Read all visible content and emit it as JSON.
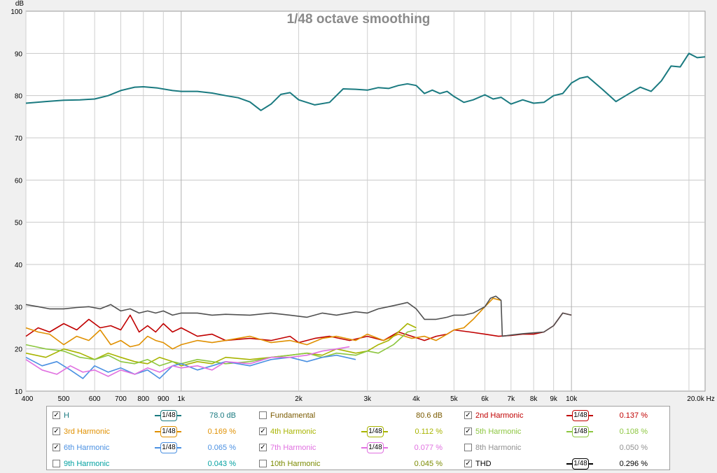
{
  "chart_data": {
    "type": "line",
    "title": "1/48 octave smoothing",
    "ylabel": "dB",
    "xlabel": "",
    "x_scale": "log",
    "xlim": [
      400,
      22000
    ],
    "ylim": [
      10,
      100
    ],
    "yticks": [
      10,
      20,
      30,
      40,
      50,
      60,
      70,
      80,
      90,
      100
    ],
    "xticks": [
      {
        "v": 400,
        "label": "400"
      },
      {
        "v": 500,
        "label": "500"
      },
      {
        "v": 600,
        "label": "600"
      },
      {
        "v": 700,
        "label": "700"
      },
      {
        "v": 800,
        "label": "800"
      },
      {
        "v": 900,
        "label": "900"
      },
      {
        "v": 1000,
        "label": "1k"
      },
      {
        "v": 2000,
        "label": "2k"
      },
      {
        "v": 3000,
        "label": "3k"
      },
      {
        "v": 4000,
        "label": "4k"
      },
      {
        "v": 5000,
        "label": "5k"
      },
      {
        "v": 6000,
        "label": "6k"
      },
      {
        "v": 7000,
        "label": "7k"
      },
      {
        "v": 8000,
        "label": "8k"
      },
      {
        "v": 9000,
        "label": "9k"
      },
      {
        "v": 10000,
        "label": "10k"
      },
      {
        "v": 20000,
        "label": "20.0k Hz"
      }
    ],
    "grid": true,
    "series": [
      {
        "name": "H",
        "color": "#1a7a80",
        "x": [
          400,
          450,
          500,
          550,
          600,
          650,
          700,
          760,
          800,
          870,
          950,
          1000,
          1100,
          1200,
          1300,
          1400,
          1500,
          1600,
          1700,
          1800,
          1900,
          2000,
          2200,
          2400,
          2600,
          2800,
          3000,
          3200,
          3400,
          3600,
          3800,
          4000,
          4200,
          4400,
          4600,
          4800,
          5000,
          5300,
          5600,
          6000,
          6300,
          6600,
          7000,
          7500,
          8000,
          8500,
          9000,
          9500,
          10000,
          10500,
          11000,
          12000,
          13000,
          14000,
          15000,
          16000,
          17000,
          18000,
          19000,
          20000,
          21000,
          22000
        ],
        "y": [
          78.2,
          78.6,
          78.9,
          79.0,
          79.2,
          80.0,
          81.2,
          82.0,
          82.1,
          81.8,
          81.2,
          81.0,
          81.0,
          80.6,
          80.0,
          79.5,
          78.5,
          76.5,
          78.0,
          80.3,
          80.7,
          79.0,
          77.8,
          78.4,
          81.6,
          81.5,
          81.3,
          81.9,
          81.7,
          82.4,
          82.8,
          82.4,
          80.5,
          81.3,
          80.5,
          81.0,
          79.8,
          78.4,
          79.0,
          80.2,
          79.2,
          79.6,
          78.0,
          79.0,
          78.2,
          78.4,
          80.0,
          80.5,
          83.0,
          84.1,
          84.5,
          81.5,
          78.6,
          80.4,
          82.0,
          81.0,
          83.5,
          87.0,
          86.8,
          90.0,
          89.0,
          89.2
        ]
      },
      {
        "name": "2nd Harmonic",
        "color": "#c00000",
        "x": [
          400,
          430,
          460,
          500,
          540,
          580,
          620,
          660,
          700,
          740,
          780,
          820,
          860,
          900,
          950,
          1000,
          1100,
          1200,
          1300,
          1500,
          1700,
          1900,
          2000,
          2200,
          2400,
          2700,
          3000,
          3300,
          3600,
          3900,
          4200,
          4500,
          4800,
          5000,
          5500,
          6000,
          6500,
          7000,
          7500,
          8000,
          8500,
          9000,
          9500,
          10000
        ],
        "y": [
          23,
          25,
          24,
          26,
          24.5,
          27,
          25,
          25.5,
          24.5,
          28,
          24,
          25.5,
          24,
          26,
          24,
          25,
          23,
          23.5,
          22,
          22.5,
          22,
          23,
          21.5,
          22.5,
          23,
          22,
          23,
          22,
          24,
          23,
          22,
          23,
          23.5,
          24.5,
          24,
          23.5,
          23,
          23.2,
          23.5,
          23.5,
          24,
          25.5,
          28.5,
          28
        ]
      },
      {
        "name": "3rd Harmonic",
        "color": "#e09000",
        "x": [
          400,
          430,
          460,
          500,
          540,
          580,
          620,
          660,
          700,
          740,
          780,
          820,
          860,
          900,
          950,
          1000,
          1100,
          1200,
          1300,
          1500,
          1700,
          1900,
          2100,
          2300,
          2500,
          2800,
          3000,
          3300,
          3600,
          3900,
          4200,
          4500,
          4800,
          5000,
          5300,
          5600,
          6000,
          6300,
          6600
        ],
        "y": [
          25,
          24,
          23.5,
          21,
          23,
          22,
          24.5,
          21,
          22,
          20.5,
          21,
          23,
          22,
          21.5,
          20,
          21,
          22,
          21.5,
          22,
          23,
          21.5,
          22,
          21,
          22.5,
          23,
          22,
          23.5,
          22,
          23.5,
          22.5,
          23,
          22,
          23.5,
          24.5,
          25,
          27,
          30,
          32,
          31.5
        ]
      },
      {
        "name": "4th Harmonic",
        "color": "#a8b400",
        "x": [
          400,
          450,
          500,
          550,
          600,
          650,
          700,
          760,
          820,
          880,
          950,
          1000,
          1100,
          1200,
          1300,
          1500,
          1700,
          1900,
          2100,
          2300,
          2500,
          2800,
          3000,
          3200,
          3400,
          3600,
          3800,
          4000
        ],
        "y": [
          19,
          18,
          20,
          19,
          17.5,
          19,
          18,
          17,
          16.5,
          18,
          17,
          16,
          17,
          16.5,
          18,
          17.5,
          18,
          18.5,
          19,
          18.5,
          20,
          19,
          19.5,
          21,
          22,
          24,
          26,
          25
        ]
      },
      {
        "name": "5th Harmonic",
        "color": "#8cc63f",
        "x": [
          400,
          450,
          500,
          550,
          600,
          650,
          700,
          760,
          820,
          880,
          950,
          1000,
          1100,
          1200,
          1300,
          1500,
          1700,
          1900,
          2100,
          2300,
          2500,
          2800,
          3000,
          3200,
          3500,
          3800,
          4000
        ],
        "y": [
          21,
          20,
          19.5,
          18,
          17.5,
          18.5,
          17,
          16.5,
          17.5,
          16,
          17,
          16.5,
          17.5,
          17,
          16.5,
          17,
          18,
          18.5,
          19,
          18,
          19,
          18.5,
          19.5,
          19,
          21,
          24,
          24.5
        ]
      },
      {
        "name": "6th Harmonic",
        "color": "#4a90e2",
        "x": [
          400,
          440,
          480,
          520,
          560,
          600,
          650,
          700,
          760,
          820,
          880,
          950,
          1000,
          1100,
          1200,
          1300,
          1500,
          1700,
          1900,
          2100,
          2300,
          2500,
          2800
        ],
        "y": [
          18,
          16,
          17,
          15,
          13,
          16,
          14.5,
          15.5,
          14,
          15,
          13,
          16,
          16.5,
          15,
          16,
          17,
          16,
          17.5,
          18,
          17,
          18,
          18.5,
          17.5
        ]
      },
      {
        "name": "7th Harmonic",
        "color": "#e070e0",
        "x": [
          400,
          440,
          480,
          520,
          560,
          600,
          650,
          700,
          760,
          820,
          880,
          950,
          1000,
          1100,
          1200,
          1300,
          1500,
          1700,
          1900,
          2100,
          2300,
          2500,
          2700
        ],
        "y": [
          17.5,
          15,
          14,
          16,
          14.5,
          15,
          13.5,
          15,
          14,
          15.5,
          14.5,
          16,
          15.5,
          16,
          15,
          17,
          16.5,
          18,
          18,
          18.5,
          19.5,
          20,
          20.5
        ]
      },
      {
        "name": "8th Harmonic",
        "color": "#909090",
        "x": [],
        "y": []
      },
      {
        "name": "THD",
        "color": "#505050",
        "x": [
          400,
          430,
          460,
          500,
          540,
          580,
          620,
          660,
          700,
          740,
          780,
          820,
          860,
          900,
          950,
          1000,
          1100,
          1200,
          1300,
          1500,
          1700,
          1900,
          2100,
          2300,
          2500,
          2800,
          3000,
          3200,
          3400,
          3600,
          3800,
          4000,
          4200,
          4500,
          4800,
          5000,
          5300,
          5600,
          6000,
          6200,
          6400,
          6600,
          6650,
          7000,
          7500,
          8000,
          8500,
          9000,
          9500,
          10000
        ],
        "y": [
          30.5,
          30,
          29.5,
          29.5,
          29.8,
          30,
          29.5,
          30.5,
          29,
          29.5,
          28.5,
          29,
          28.5,
          29,
          28,
          28.5,
          28.5,
          28,
          28.2,
          28,
          28.5,
          28,
          27.5,
          28.5,
          28,
          28.8,
          28.5,
          29.5,
          30,
          30.5,
          31,
          29.5,
          27,
          27,
          27.5,
          28,
          28,
          28.5,
          30,
          32,
          32.5,
          31.5,
          23,
          23.3,
          23.6,
          23.8,
          24,
          25.5,
          28.5,
          28
        ]
      }
    ]
  },
  "legend": [
    {
      "name": "H",
      "checked": true,
      "smooth": true,
      "value": "78.0 dB",
      "color": "#1a7a80"
    },
    {
      "name": "Fundamental",
      "checked": false,
      "smooth": false,
      "value": "80.6 dB",
      "color": "#7a5a00"
    },
    {
      "name": "2nd Harmonic",
      "checked": true,
      "smooth": true,
      "value": "0.137 %",
      "color": "#c00000"
    },
    {
      "name": "3rd Harmonic",
      "checked": true,
      "smooth": true,
      "value": "0.169 %",
      "color": "#e09000"
    },
    {
      "name": "4th Harmonic",
      "checked": true,
      "smooth": true,
      "value": "0.112 %",
      "color": "#a8b400"
    },
    {
      "name": "5th Harmonic",
      "checked": true,
      "smooth": true,
      "value": "0.108 %",
      "color": "#8cc63f"
    },
    {
      "name": "6th Harmonic",
      "checked": true,
      "smooth": true,
      "value": "0.065 %",
      "color": "#4a90e2"
    },
    {
      "name": "7th Harmonic",
      "checked": true,
      "smooth": true,
      "value": "0.077 %",
      "color": "#e070e0"
    },
    {
      "name": "8th Harmonic",
      "checked": false,
      "smooth": false,
      "value": "0.050 %",
      "color": "#909090"
    },
    {
      "name": "9th Harmonic",
      "checked": false,
      "smooth": false,
      "value": "0.043 %",
      "color": "#00a0a0"
    },
    {
      "name": "10th Harmonic",
      "checked": false,
      "smooth": false,
      "value": "0.045 %",
      "color": "#7a8a00"
    },
    {
      "name": "THD",
      "checked": true,
      "smooth": true,
      "value": "0.296 %",
      "color": "#000000"
    }
  ],
  "smooth_label": "1/48"
}
